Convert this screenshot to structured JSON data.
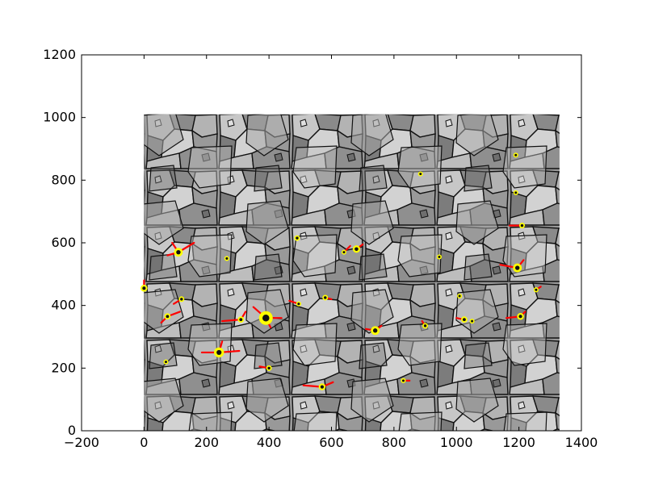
{
  "chart_data": {
    "type": "scatter",
    "title": "",
    "xlabel": "",
    "ylabel": "",
    "xlim": [
      -200,
      1400
    ],
    "ylim": [
      0,
      1200
    ],
    "x_ticks": [
      -200,
      0,
      200,
      400,
      600,
      800,
      1000,
      1200,
      1400
    ],
    "y_ticks": [
      0,
      200,
      400,
      600,
      800,
      1000,
      1200
    ],
    "x_tick_labels": [
      "−200",
      "0",
      "200",
      "400",
      "600",
      "800",
      "1000",
      "1200",
      "1400"
    ],
    "y_tick_labels": [
      "0",
      "200",
      "400",
      "600",
      "800",
      "1000",
      "1200"
    ],
    "grid": false,
    "background_image": {
      "description_key": "grain-microstructure",
      "extent": {
        "x": [
          0,
          1330
        ],
        "y": [
          0,
          1010
        ]
      },
      "colors": {
        "grain_light": "#c8c8c8",
        "grain_dark": "#707070",
        "boundary": "#111111"
      }
    },
    "colors": {
      "marker": "#ffff00",
      "vector": "#ff0000",
      "core": "#111111"
    },
    "markers": [
      {
        "x": 110,
        "y": 570,
        "r": 14
      },
      {
        "x": 265,
        "y": 550,
        "r": 8
      },
      {
        "x": 490,
        "y": 615,
        "r": 9
      },
      {
        "x": 640,
        "y": 570,
        "r": 7
      },
      {
        "x": 680,
        "y": 580,
        "r": 12
      },
      {
        "x": 0,
        "y": 455,
        "r": 11
      },
      {
        "x": 120,
        "y": 420,
        "r": 9
      },
      {
        "x": 75,
        "y": 365,
        "r": 10
      },
      {
        "x": 310,
        "y": 355,
        "r": 10
      },
      {
        "x": 390,
        "y": 360,
        "r": 22
      },
      {
        "x": 495,
        "y": 405,
        "r": 8
      },
      {
        "x": 580,
        "y": 425,
        "r": 9
      },
      {
        "x": 740,
        "y": 320,
        "r": 14
      },
      {
        "x": 900,
        "y": 335,
        "r": 9
      },
      {
        "x": 1025,
        "y": 355,
        "r": 10
      },
      {
        "x": 1050,
        "y": 350,
        "r": 6
      },
      {
        "x": 1205,
        "y": 365,
        "r": 11
      },
      {
        "x": 1255,
        "y": 450,
        "r": 8
      },
      {
        "x": 1195,
        "y": 520,
        "r": 14
      },
      {
        "x": 1210,
        "y": 655,
        "r": 9
      },
      {
        "x": 1190,
        "y": 760,
        "r": 6
      },
      {
        "x": 1190,
        "y": 880,
        "r": 7
      },
      {
        "x": 885,
        "y": 820,
        "r": 5
      },
      {
        "x": 945,
        "y": 555,
        "r": 7
      },
      {
        "x": 1010,
        "y": 430,
        "r": 6
      },
      {
        "x": 70,
        "y": 220,
        "r": 7
      },
      {
        "x": 240,
        "y": 250,
        "r": 16
      },
      {
        "x": 400,
        "y": 200,
        "r": 9
      },
      {
        "x": 570,
        "y": 140,
        "r": 11
      },
      {
        "x": 830,
        "y": 160,
        "r": 8
      }
    ],
    "vectors": [
      {
        "x1": 110,
        "y1": 570,
        "x2": 160,
        "y2": 600
      },
      {
        "x1": 110,
        "y1": 570,
        "x2": 90,
        "y2": 600
      },
      {
        "x1": 110,
        "y1": 570,
        "x2": 75,
        "y2": 560
      },
      {
        "x1": 0,
        "y1": 455,
        "x2": 0,
        "y2": 480
      },
      {
        "x1": 120,
        "y1": 420,
        "x2": 95,
        "y2": 405
      },
      {
        "x1": 75,
        "y1": 365,
        "x2": 115,
        "y2": 380
      },
      {
        "x1": 75,
        "y1": 365,
        "x2": 55,
        "y2": 345
      },
      {
        "x1": 310,
        "y1": 355,
        "x2": 250,
        "y2": 350
      },
      {
        "x1": 310,
        "y1": 355,
        "x2": 325,
        "y2": 380
      },
      {
        "x1": 390,
        "y1": 360,
        "x2": 350,
        "y2": 395
      },
      {
        "x1": 390,
        "y1": 360,
        "x2": 440,
        "y2": 360
      },
      {
        "x1": 390,
        "y1": 360,
        "x2": 405,
        "y2": 330
      },
      {
        "x1": 495,
        "y1": 405,
        "x2": 465,
        "y2": 415
      },
      {
        "x1": 580,
        "y1": 425,
        "x2": 600,
        "y2": 420
      },
      {
        "x1": 740,
        "y1": 320,
        "x2": 710,
        "y2": 325
      },
      {
        "x1": 740,
        "y1": 320,
        "x2": 760,
        "y2": 335
      },
      {
        "x1": 900,
        "y1": 335,
        "x2": 890,
        "y2": 350
      },
      {
        "x1": 1025,
        "y1": 355,
        "x2": 1000,
        "y2": 360
      },
      {
        "x1": 1205,
        "y1": 365,
        "x2": 1160,
        "y2": 360
      },
      {
        "x1": 1205,
        "y1": 365,
        "x2": 1220,
        "y2": 380
      },
      {
        "x1": 1255,
        "y1": 450,
        "x2": 1270,
        "y2": 460
      },
      {
        "x1": 1195,
        "y1": 520,
        "x2": 1140,
        "y2": 530
      },
      {
        "x1": 1195,
        "y1": 520,
        "x2": 1215,
        "y2": 545
      },
      {
        "x1": 1210,
        "y1": 655,
        "x2": 1170,
        "y2": 655
      },
      {
        "x1": 640,
        "y1": 570,
        "x2": 660,
        "y2": 590
      },
      {
        "x1": 680,
        "y1": 580,
        "x2": 700,
        "y2": 595
      },
      {
        "x1": 240,
        "y1": 250,
        "x2": 185,
        "y2": 250
      },
      {
        "x1": 240,
        "y1": 250,
        "x2": 305,
        "y2": 255
      },
      {
        "x1": 240,
        "y1": 250,
        "x2": 250,
        "y2": 285
      },
      {
        "x1": 400,
        "y1": 200,
        "x2": 370,
        "y2": 205
      },
      {
        "x1": 570,
        "y1": 140,
        "x2": 510,
        "y2": 145
      },
      {
        "x1": 570,
        "y1": 140,
        "x2": 605,
        "y2": 155
      },
      {
        "x1": 830,
        "y1": 160,
        "x2": 850,
        "y2": 160
      }
    ]
  }
}
